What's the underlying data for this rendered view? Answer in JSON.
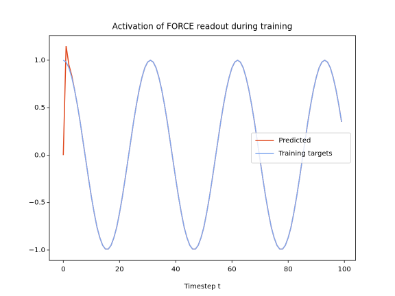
{
  "chart_data": {
    "type": "line",
    "title": "Activation of FORCE readout during training",
    "x_label": "Timestep t",
    "x": [
      0,
      1,
      2,
      3,
      4,
      5,
      6,
      7,
      8,
      9,
      10,
      11,
      12,
      13,
      14,
      15,
      16,
      17,
      18,
      19,
      20,
      21,
      22,
      23,
      24,
      25,
      26,
      27,
      28,
      29,
      30,
      31,
      32,
      33,
      34,
      35,
      36,
      37,
      38,
      39,
      40,
      41,
      42,
      43,
      44,
      45,
      46,
      47,
      48,
      49,
      50,
      51,
      52,
      53,
      54,
      55,
      56,
      57,
      58,
      59,
      60,
      61,
      62,
      63,
      64,
      65,
      66,
      67,
      68,
      69,
      70,
      71,
      72,
      73,
      74,
      75,
      76,
      77,
      78,
      79,
      80,
      81,
      82,
      83,
      84,
      85,
      86,
      87,
      88,
      89,
      90,
      91,
      92,
      93,
      94,
      95,
      96,
      97,
      98,
      99
    ],
    "series": [
      {
        "name": "Predicted",
        "color": "#e0481e",
        "values": [
          0,
          1.15,
          0.95,
          0.84,
          0.69,
          0.53,
          0.35,
          0.15,
          -0.05,
          -0.25,
          -0.44,
          -0.61,
          -0.76,
          -0.87,
          -0.95,
          -0.99,
          -0.99,
          -0.95,
          -0.87,
          -0.76,
          -0.61,
          -0.44,
          -0.25,
          -0.05,
          0.15,
          0.35,
          0.53,
          0.69,
          0.82,
          0.92,
          0.98,
          1.0,
          0.98,
          0.92,
          0.82,
          0.69,
          0.53,
          0.35,
          0.15,
          -0.05,
          -0.25,
          -0.44,
          -0.61,
          -0.76,
          -0.87,
          -0.95,
          -0.99,
          -0.99,
          -0.95,
          -0.87,
          -0.76,
          -0.61,
          -0.44,
          -0.25,
          -0.05,
          0.15,
          0.35,
          0.53,
          0.69,
          0.82,
          0.92,
          0.98,
          1.0,
          0.98,
          0.92,
          0.82,
          0.69,
          0.53,
          0.35,
          0.15,
          -0.05,
          -0.25,
          -0.44,
          -0.61,
          -0.76,
          -0.87,
          -0.95,
          -0.99,
          -0.99,
          -0.95,
          -0.87,
          -0.76,
          -0.61,
          -0.44,
          -0.25,
          -0.05,
          0.15,
          0.35,
          0.53,
          0.69,
          0.82,
          0.92,
          0.98,
          1.0,
          0.98,
          0.92,
          0.82,
          0.69,
          0.53,
          0.35
        ]
      },
      {
        "name": "Training targets",
        "color": "#7fa6ee",
        "values": [
          1.0,
          0.98,
          0.92,
          0.82,
          0.69,
          0.53,
          0.35,
          0.15,
          -0.05,
          -0.25,
          -0.44,
          -0.61,
          -0.76,
          -0.87,
          -0.95,
          -0.99,
          -0.99,
          -0.95,
          -0.87,
          -0.76,
          -0.61,
          -0.44,
          -0.25,
          -0.05,
          0.15,
          0.35,
          0.53,
          0.69,
          0.82,
          0.92,
          0.98,
          1.0,
          0.98,
          0.92,
          0.82,
          0.69,
          0.53,
          0.35,
          0.15,
          -0.05,
          -0.25,
          -0.44,
          -0.61,
          -0.76,
          -0.87,
          -0.95,
          -0.99,
          -0.99,
          -0.95,
          -0.87,
          -0.76,
          -0.61,
          -0.44,
          -0.25,
          -0.05,
          0.15,
          0.35,
          0.53,
          0.69,
          0.82,
          0.92,
          0.98,
          1.0,
          0.98,
          0.92,
          0.82,
          0.69,
          0.53,
          0.35,
          0.15,
          -0.05,
          -0.25,
          -0.44,
          -0.61,
          -0.76,
          -0.87,
          -0.95,
          -0.99,
          -0.99,
          -0.95,
          -0.87,
          -0.76,
          -0.61,
          -0.44,
          -0.25,
          -0.05,
          0.15,
          0.35,
          0.53,
          0.69,
          0.82,
          0.92,
          0.98,
          1.0,
          0.98,
          0.92,
          0.82,
          0.69,
          0.53,
          0.35
        ]
      }
    ],
    "xlim": [
      -4.95,
      103.95
    ],
    "ylim": [
      -1.11,
      1.26
    ],
    "xticks": [
      0,
      20,
      40,
      60,
      80,
      100
    ],
    "yticks": [
      {
        "value": -1,
        "label": "−1.0"
      },
      {
        "value": -0.5,
        "label": "−0.5"
      },
      {
        "value": 0,
        "label": "0.0"
      },
      {
        "value": 0.5,
        "label": "0.5"
      },
      {
        "value": 1,
        "label": "1.0"
      }
    ],
    "legend": "center right"
  }
}
